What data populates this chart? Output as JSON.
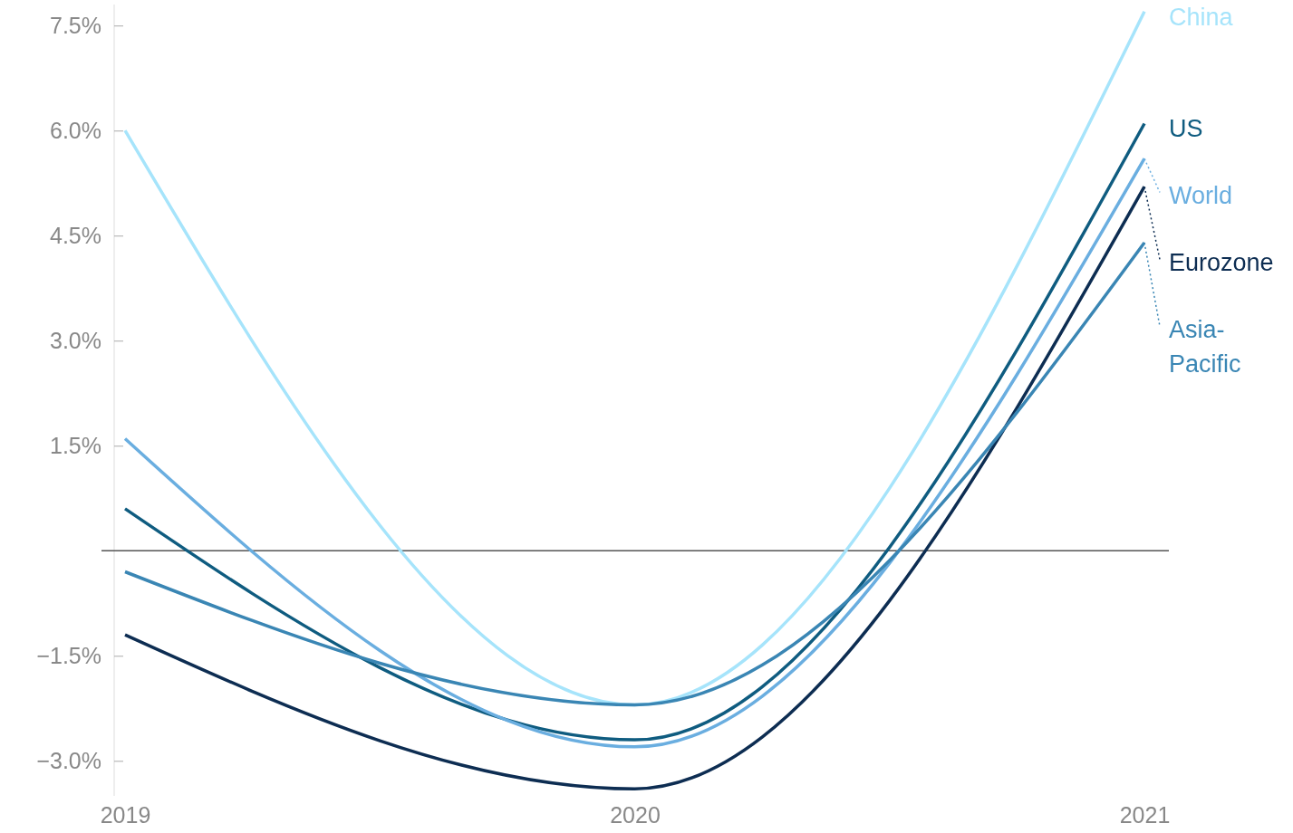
{
  "chart_data": {
    "type": "line",
    "x": [
      2019,
      2020,
      2021
    ],
    "xlim": [
      2019,
      2021
    ],
    "xticks": [
      2019,
      2020,
      2021
    ],
    "ylim": [
      -3.5,
      7.8
    ],
    "yticks": [
      {
        "value": -3,
        "label": "−3.0%"
      },
      {
        "value": -1.5,
        "label": "−1.5%"
      },
      {
        "value": 1.5,
        "label": "1.5%"
      },
      {
        "value": 3,
        "label": "3.0%"
      },
      {
        "value": 4.5,
        "label": "4.5%"
      },
      {
        "value": 6,
        "label": "6.0%"
      },
      {
        "value": 7.5,
        "label": "7.5%"
      }
    ],
    "grid": false,
    "line_style": "solid",
    "marker": "none",
    "ref_lines": [
      {
        "axis": "y",
        "value": 0,
        "color": "#555555"
      }
    ],
    "series": [
      {
        "name": "China",
        "color": "#a6e4fb",
        "values": [
          6.0,
          -2.2,
          7.7
        ]
      },
      {
        "name": "US",
        "color": "#0f5c80",
        "values": [
          0.6,
          -2.7,
          6.1
        ]
      },
      {
        "name": "World",
        "color": "#6aaee0",
        "values": [
          1.6,
          -2.8,
          5.6
        ]
      },
      {
        "name": "Eurozone",
        "color": "#0d2d52",
        "values": [
          -1.2,
          -3.4,
          5.2
        ]
      },
      {
        "name": "Asia-Pacific",
        "color": "#3a86b4",
        "values": [
          -0.3,
          -2.2,
          4.4
        ]
      }
    ]
  }
}
